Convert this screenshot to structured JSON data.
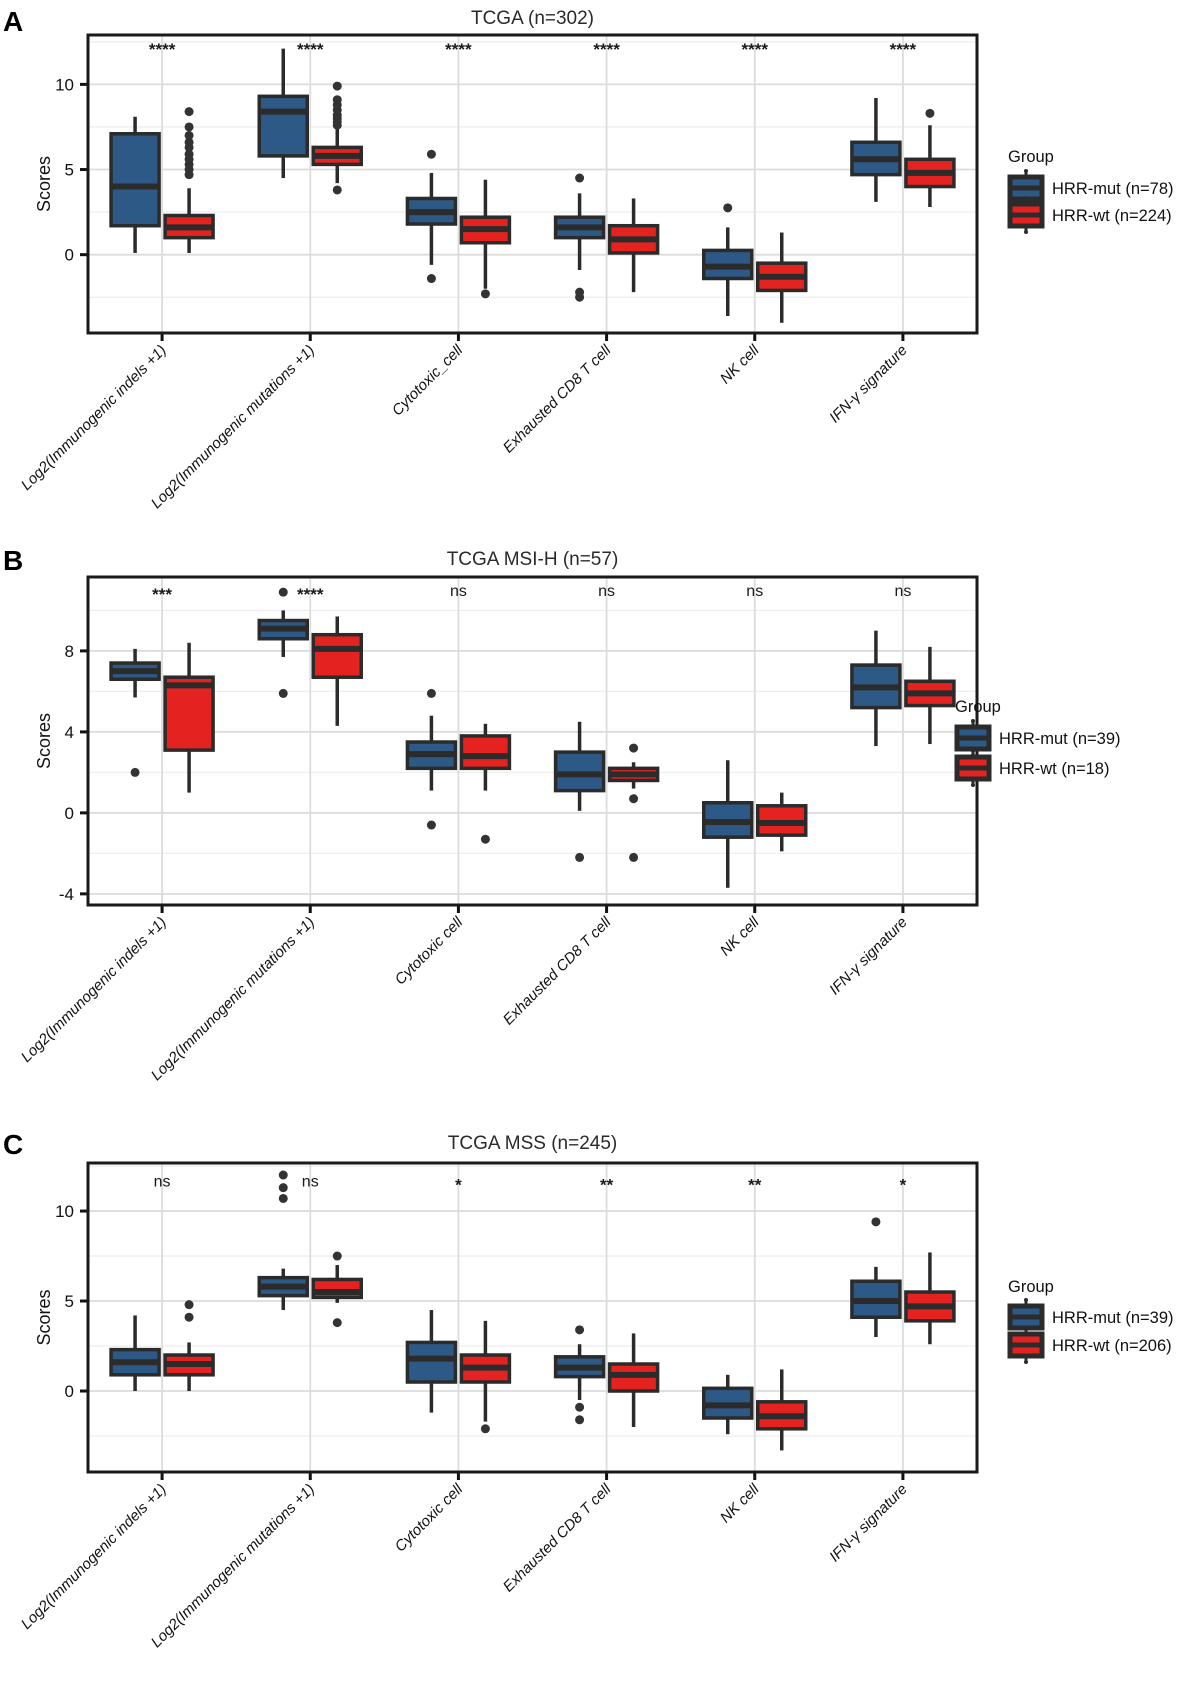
{
  "colors": {
    "hrr_mut": "#2c5985",
    "hrr_wt": "#e42320",
    "box_outline": "#2b2b2b",
    "outlier": "#333333",
    "grid_major": "#dcdcdc",
    "grid_minor": "#eeeeee",
    "panel_border": "#1a1a1a",
    "text": "#111111"
  },
  "chart_data": [
    {
      "type": "boxplot",
      "panel_label": "A",
      "title": "TCGA (n=302)",
      "ylabel": "Scores",
      "ylim": [
        -4.6,
        12.9
      ],
      "yticks": [
        0,
        5,
        10
      ],
      "minor_gridlines": [
        -2.5,
        2.5,
        7.5,
        12.5
      ],
      "legend": {
        "title": "Group",
        "position": "right"
      },
      "categories": [
        "Log2(Immunogenic indels +1)",
        "Log2(Immunogenic mutations +1)",
        "Cytotoxic_cell",
        "Exhausted CD8 T cell",
        "NK cell",
        "IFN-γ signature"
      ],
      "significance": [
        "****",
        "****",
        "****",
        "****",
        "****",
        "****"
      ],
      "series": [
        {
          "name": "HRR-mut (n=78)",
          "color_key": "hrr_mut",
          "boxes": [
            {
              "low": 0.1,
              "q1": 1.7,
              "med": 4.0,
              "q3": 7.1,
              "high": 8.1,
              "out": []
            },
            {
              "low": 4.5,
              "q1": 5.8,
              "med": 8.4,
              "q3": 9.3,
              "high": 12.1,
              "out": []
            },
            {
              "low": -0.6,
              "q1": 1.8,
              "med": 2.5,
              "q3": 3.3,
              "high": 4.8,
              "out": [
                5.9,
                -1.4
              ]
            },
            {
              "low": -0.9,
              "q1": 1.0,
              "med": 1.6,
              "q3": 2.2,
              "high": 3.6,
              "out": [
                4.5,
                -2.2,
                -2.5
              ]
            },
            {
              "low": -3.6,
              "q1": -1.4,
              "med": -0.7,
              "q3": 0.25,
              "high": 1.6,
              "out": [
                2.75
              ]
            },
            {
              "low": 3.1,
              "q1": 4.7,
              "med": 5.6,
              "q3": 6.6,
              "high": 9.2,
              "out": []
            }
          ]
        },
        {
          "name": "HRR-wt (n=224)",
          "color_key": "hrr_wt",
          "boxes": [
            {
              "low": 0.1,
              "q1": 1.0,
              "med": 1.6,
              "q3": 2.3,
              "high": 3.9,
              "out": [
                4.7,
                5.0,
                5.3,
                5.6,
                5.9,
                6.3,
                6.6,
                7.0,
                7.5,
                8.4
              ]
            },
            {
              "low": 4.2,
              "q1": 5.3,
              "med": 5.8,
              "q3": 6.3,
              "high": 7.4,
              "out": [
                7.6,
                7.8,
                8.0,
                8.2,
                8.5,
                8.8,
                9.1,
                9.9,
                3.8
              ]
            },
            {
              "low": -2.0,
              "q1": 0.7,
              "med": 1.5,
              "q3": 2.2,
              "high": 4.4,
              "out": [
                -2.3
              ]
            },
            {
              "low": -2.2,
              "q1": 0.1,
              "med": 0.9,
              "q3": 1.7,
              "high": 3.3,
              "out": []
            },
            {
              "low": -4.0,
              "q1": -2.1,
              "med": -1.3,
              "q3": -0.5,
              "high": 1.3,
              "out": []
            },
            {
              "low": 2.8,
              "q1": 4.0,
              "med": 4.8,
              "q3": 5.6,
              "high": 7.6,
              "out": [
                8.3
              ]
            }
          ]
        }
      ]
    },
    {
      "type": "boxplot",
      "panel_label": "B",
      "title": "TCGA MSI-H (n=57)",
      "ylabel": "Scores",
      "ylim": [
        -4.55,
        11.65
      ],
      "yticks": [
        -4,
        0,
        4,
        8
      ],
      "minor_gridlines": [
        -2,
        2,
        6,
        10
      ],
      "legend": {
        "title": "Group",
        "position": "right"
      },
      "categories": [
        "Log2(Immunogenic indels +1)",
        "Log2(Immunogenic mutations +1)",
        "Cytotoxic cell",
        "Exhausted CD8 T cell",
        "NK cell",
        "IFN-γ signature"
      ],
      "significance": [
        "***",
        "****",
        "ns",
        "ns",
        "ns",
        "ns"
      ],
      "series": [
        {
          "name": "HRR-mut (n=39)",
          "color_key": "hrr_mut",
          "boxes": [
            {
              "low": 5.7,
              "q1": 6.6,
              "med": 7.0,
              "q3": 7.4,
              "high": 8.1,
              "out": [
                2.0
              ]
            },
            {
              "low": 7.7,
              "q1": 8.6,
              "med": 9.1,
              "q3": 9.5,
              "high": 10.0,
              "out": [
                10.9,
                5.9
              ]
            },
            {
              "low": 1.1,
              "q1": 2.2,
              "med": 2.9,
              "q3": 3.5,
              "high": 4.8,
              "out": [
                5.9,
                -0.6
              ]
            },
            {
              "low": 0.1,
              "q1": 1.1,
              "med": 1.9,
              "q3": 3.0,
              "high": 4.5,
              "out": [
                -2.2
              ]
            },
            {
              "low": -3.7,
              "q1": -1.2,
              "med": -0.45,
              "q3": 0.5,
              "high": 2.6,
              "out": []
            },
            {
              "low": 3.3,
              "q1": 5.2,
              "med": 6.2,
              "q3": 7.3,
              "high": 9.0,
              "out": []
            }
          ]
        },
        {
          "name": "HRR-wt (n=18)",
          "color_key": "hrr_wt",
          "boxes": [
            {
              "low": 1.0,
              "q1": 3.1,
              "med": 6.3,
              "q3": 6.7,
              "high": 8.4,
              "out": []
            },
            {
              "low": 4.3,
              "q1": 6.7,
              "med": 8.1,
              "q3": 8.8,
              "high": 9.7,
              "out": []
            },
            {
              "low": 1.1,
              "q1": 2.2,
              "med": 2.8,
              "q3": 3.8,
              "high": 4.4,
              "out": [
                -1.3
              ]
            },
            {
              "low": 1.2,
              "q1": 1.6,
              "med": 1.9,
              "q3": 2.2,
              "high": 2.5,
              "out": [
                3.2,
                0.7,
                -2.2
              ]
            },
            {
              "low": -1.9,
              "q1": -1.1,
              "med": -0.5,
              "q3": 0.35,
              "high": 1.0,
              "out": []
            },
            {
              "low": 3.4,
              "q1": 5.3,
              "med": 5.9,
              "q3": 6.5,
              "high": 8.2,
              "out": []
            }
          ]
        }
      ]
    },
    {
      "type": "boxplot",
      "panel_label": "C",
      "title": "TCGA MSS (n=245)",
      "ylabel": "Scores",
      "ylim": [
        -4.5,
        12.67
      ],
      "yticks": [
        0,
        5,
        10
      ],
      "minor_gridlines": [
        -2.5,
        2.5,
        7.5,
        12.5
      ],
      "legend": {
        "title": "Group",
        "position": "right"
      },
      "categories": [
        "Log2(Immunogenic indels +1)",
        "Log2(Immunogenic mutations +1)",
        "Cytotoxic cell",
        "Exhausted CD8 T cell",
        "NK cell",
        "IFN-γ signature"
      ],
      "significance": [
        "ns",
        "ns",
        "*",
        "**",
        "**",
        "*"
      ],
      "series": [
        {
          "name": "HRR-mut (n=39)",
          "color_key": "hrr_mut",
          "boxes": [
            {
              "low": 0.0,
              "q1": 0.9,
              "med": 1.6,
              "q3": 2.3,
              "high": 4.2,
              "out": []
            },
            {
              "low": 4.5,
              "q1": 5.3,
              "med": 5.8,
              "q3": 6.3,
              "high": 6.8,
              "out": [
                12.0,
                11.3,
                10.7
              ]
            },
            {
              "low": -1.2,
              "q1": 0.5,
              "med": 1.8,
              "q3": 2.7,
              "high": 4.5,
              "out": []
            },
            {
              "low": -0.5,
              "q1": 0.8,
              "med": 1.3,
              "q3": 1.9,
              "high": 2.6,
              "out": [
                3.4,
                -0.9,
                -1.6
              ]
            },
            {
              "low": -2.4,
              "q1": -1.5,
              "med": -0.8,
              "q3": 0.15,
              "high": 0.9,
              "out": []
            },
            {
              "low": 3.0,
              "q1": 4.1,
              "med": 5.0,
              "q3": 6.1,
              "high": 6.9,
              "out": [
                9.4
              ]
            }
          ]
        },
        {
          "name": "HRR-wt (n=206)",
          "color_key": "hrr_wt",
          "boxes": [
            {
              "low": 0.0,
              "q1": 0.9,
              "med": 1.5,
              "q3": 2.0,
              "high": 2.7,
              "out": [
                4.8,
                4.1
              ]
            },
            {
              "low": 4.9,
              "q1": 5.2,
              "med": 5.5,
              "q3": 6.2,
              "high": 7.0,
              "out": [
                7.5,
                3.8
              ]
            },
            {
              "low": -1.7,
              "q1": 0.5,
              "med": 1.3,
              "q3": 2.0,
              "high": 3.9,
              "out": [
                -2.1
              ]
            },
            {
              "low": -2.0,
              "q1": 0.0,
              "med": 0.9,
              "q3": 1.5,
              "high": 3.2,
              "out": []
            },
            {
              "low": -3.3,
              "q1": -2.1,
              "med": -1.4,
              "q3": -0.6,
              "high": 1.2,
              "out": []
            },
            {
              "low": 2.6,
              "q1": 3.9,
              "med": 4.7,
              "q3": 5.5,
              "high": 7.7,
              "out": []
            }
          ]
        }
      ]
    }
  ]
}
